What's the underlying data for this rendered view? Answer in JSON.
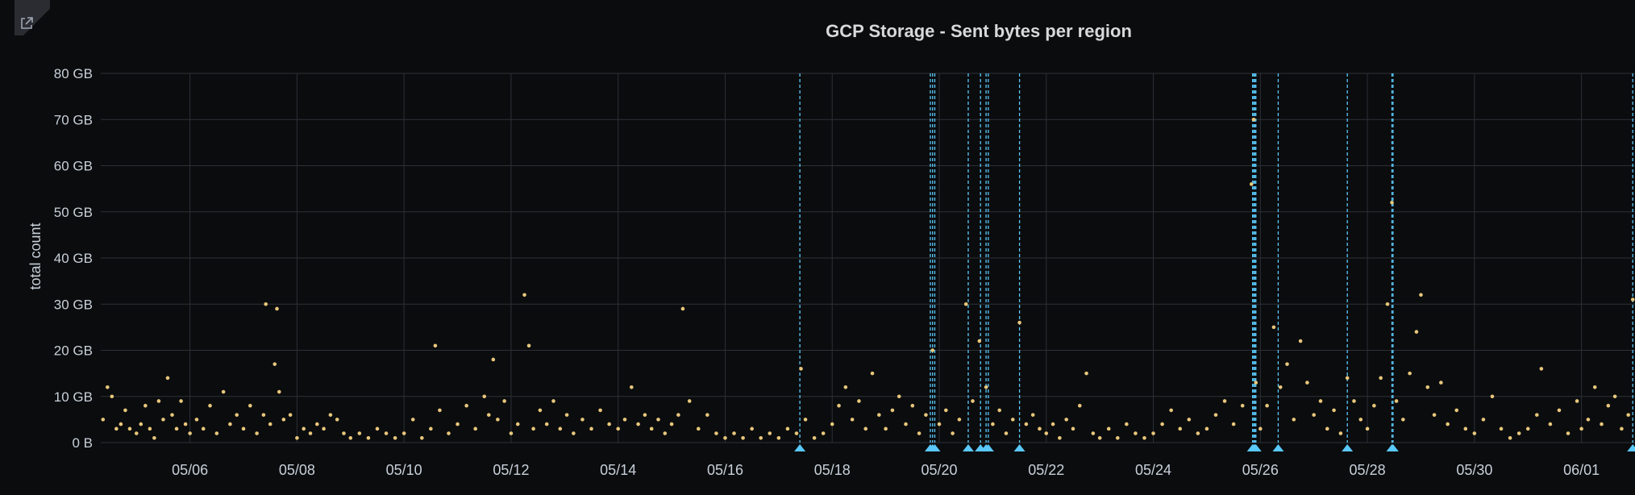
{
  "panel": {
    "title": "GCP Storage - Sent bytes per region",
    "link_icon": "external-link-icon"
  },
  "colors": {
    "background": "#0b0c0e",
    "grid": "#2c3036",
    "points": "#e8c77b",
    "annotations": "#5ac8fa",
    "text": "#c7d0d9"
  },
  "chart_data": {
    "type": "scatter",
    "title": "GCP Storage - Sent bytes per region",
    "ylabel": "total count",
    "xlabel": "",
    "x_range": [
      "05/04 08:00",
      "06/02 00:00"
    ],
    "ylim": [
      0,
      80
    ],
    "y_unit": "GB",
    "y_ticks": [
      "0 B",
      "10 GB",
      "20 GB",
      "30 GB",
      "40 GB",
      "50 GB",
      "60 GB",
      "70 GB",
      "80 GB"
    ],
    "x_ticks": [
      "05/06",
      "05/08",
      "05/10",
      "05/12",
      "05/14",
      "05/16",
      "05/18",
      "05/20",
      "05/22",
      "05/24",
      "05/26",
      "05/28",
      "05/30",
      "06/01"
    ],
    "grid": true,
    "annotation_times": [
      "05/17 09:30",
      "05/19 20:00",
      "05/19 21:00",
      "05/19 22:00",
      "05/20 13:00",
      "05/20 18:30",
      "05/20 21:00",
      "05/20 22:00",
      "05/21 12:00",
      "05/25 20:30",
      "05/25 21:00",
      "05/25 21:30",
      "05/25 22:00",
      "05/26 08:00",
      "05/27 15:00",
      "05/28 11:00",
      "05/28 11:30",
      "06/01 23:00"
    ],
    "series": [
      {
        "points": [
          [
            "05/04 09",
            5
          ],
          [
            "05/04 11",
            12
          ],
          [
            "05/04 13",
            10
          ],
          [
            "05/04 15",
            3
          ],
          [
            "05/04 17",
            4
          ],
          [
            "05/04 19",
            7
          ],
          [
            "05/04 21",
            3
          ],
          [
            "05/05 00",
            2
          ],
          [
            "05/05 02",
            4
          ],
          [
            "05/05 04",
            8
          ],
          [
            "05/05 06",
            3
          ],
          [
            "05/05 08",
            1
          ],
          [
            "05/05 10",
            9
          ],
          [
            "05/05 12",
            5
          ],
          [
            "05/05 14",
            14
          ],
          [
            "05/05 16",
            6
          ],
          [
            "05/05 18",
            3
          ],
          [
            "05/05 20",
            9
          ],
          [
            "05/05 22",
            4
          ],
          [
            "05/06 00",
            2
          ],
          [
            "05/06 03",
            5
          ],
          [
            "05/06 06",
            3
          ],
          [
            "05/06 09",
            8
          ],
          [
            "05/06 12",
            2
          ],
          [
            "05/06 15",
            11
          ],
          [
            "05/06 18",
            4
          ],
          [
            "05/06 21",
            6
          ],
          [
            "05/07 00",
            3
          ],
          [
            "05/07 03",
            8
          ],
          [
            "05/07 06",
            2
          ],
          [
            "05/07 09",
            6
          ],
          [
            "05/07 10",
            30
          ],
          [
            "05/07 12",
            4
          ],
          [
            "05/07 14",
            17
          ],
          [
            "05/07 15",
            29
          ],
          [
            "05/07 16",
            11
          ],
          [
            "05/07 18",
            5
          ],
          [
            "05/07 21",
            6
          ],
          [
            "05/08 00",
            1
          ],
          [
            "05/08 03",
            3
          ],
          [
            "05/08 06",
            2
          ],
          [
            "05/08 09",
            4
          ],
          [
            "05/08 12",
            3
          ],
          [
            "05/08 15",
            6
          ],
          [
            "05/08 18",
            5
          ],
          [
            "05/08 21",
            2
          ],
          [
            "05/09 00",
            1
          ],
          [
            "05/09 04",
            2
          ],
          [
            "05/09 08",
            1
          ],
          [
            "05/09 12",
            3
          ],
          [
            "05/09 16",
            2
          ],
          [
            "05/09 20",
            1
          ],
          [
            "05/10 00",
            2
          ],
          [
            "05/10 04",
            5
          ],
          [
            "05/10 08",
            1
          ],
          [
            "05/10 12",
            3
          ],
          [
            "05/10 14",
            21
          ],
          [
            "05/10 16",
            7
          ],
          [
            "05/10 20",
            2
          ],
          [
            "05/11 00",
            4
          ],
          [
            "05/11 04",
            8
          ],
          [
            "05/11 08",
            3
          ],
          [
            "05/11 12",
            10
          ],
          [
            "05/11 14",
            6
          ],
          [
            "05/11 16",
            18
          ],
          [
            "05/11 18",
            5
          ],
          [
            "05/11 21",
            9
          ],
          [
            "05/12 00",
            2
          ],
          [
            "05/12 03",
            4
          ],
          [
            "05/12 06",
            32
          ],
          [
            "05/12 08",
            21
          ],
          [
            "05/12 10",
            3
          ],
          [
            "05/12 13",
            7
          ],
          [
            "05/12 16",
            4
          ],
          [
            "05/12 19",
            9
          ],
          [
            "05/12 22",
            3
          ],
          [
            "05/13 01",
            6
          ],
          [
            "05/13 04",
            2
          ],
          [
            "05/13 08",
            5
          ],
          [
            "05/13 12",
            3
          ],
          [
            "05/13 16",
            7
          ],
          [
            "05/13 20",
            4
          ],
          [
            "05/14 00",
            3
          ],
          [
            "05/14 03",
            5
          ],
          [
            "05/14 06",
            12
          ],
          [
            "05/14 09",
            4
          ],
          [
            "05/14 12",
            6
          ],
          [
            "05/14 15",
            3
          ],
          [
            "05/14 18",
            5
          ],
          [
            "05/14 21",
            2
          ],
          [
            "05/15 00",
            4
          ],
          [
            "05/15 03",
            6
          ],
          [
            "05/15 05",
            29
          ],
          [
            "05/15 08",
            9
          ],
          [
            "05/15 12",
            3
          ],
          [
            "05/15 16",
            6
          ],
          [
            "05/15 20",
            2
          ],
          [
            "05/16 00",
            1
          ],
          [
            "05/16 04",
            2
          ],
          [
            "05/16 08",
            1
          ],
          [
            "05/16 12",
            3
          ],
          [
            "05/16 16",
            1
          ],
          [
            "05/16 20",
            2
          ],
          [
            "05/17 00",
            1
          ],
          [
            "05/17 04",
            3
          ],
          [
            "05/17 08",
            2
          ],
          [
            "05/17 10",
            16
          ],
          [
            "05/17 12",
            5
          ],
          [
            "05/17 16",
            1
          ],
          [
            "05/17 20",
            2
          ],
          [
            "05/18 00",
            4
          ],
          [
            "05/18 03",
            8
          ],
          [
            "05/18 06",
            12
          ],
          [
            "05/18 09",
            5
          ],
          [
            "05/18 12",
            9
          ],
          [
            "05/18 15",
            3
          ],
          [
            "05/18 18",
            15
          ],
          [
            "05/18 21",
            6
          ],
          [
            "05/19 00",
            3
          ],
          [
            "05/19 03",
            7
          ],
          [
            "05/19 06",
            10
          ],
          [
            "05/19 09",
            4
          ],
          [
            "05/19 12",
            8
          ],
          [
            "05/19 15",
            2
          ],
          [
            "05/19 18",
            6
          ],
          [
            "05/19 21",
            20
          ],
          [
            "05/20 00",
            4
          ],
          [
            "05/20 03",
            7
          ],
          [
            "05/20 06",
            2
          ],
          [
            "05/20 09",
            5
          ],
          [
            "05/20 12",
            30
          ],
          [
            "05/20 15",
            9
          ],
          [
            "05/20 18",
            22
          ],
          [
            "05/20 21",
            12
          ],
          [
            "05/21 00",
            4
          ],
          [
            "05/21 03",
            7
          ],
          [
            "05/21 06",
            2
          ],
          [
            "05/21 09",
            5
          ],
          [
            "05/21 12",
            26
          ],
          [
            "05/21 15",
            4
          ],
          [
            "05/21 18",
            6
          ],
          [
            "05/21 21",
            3
          ],
          [
            "05/22 00",
            2
          ],
          [
            "05/22 03",
            4
          ],
          [
            "05/22 06",
            1
          ],
          [
            "05/22 09",
            5
          ],
          [
            "05/22 12",
            3
          ],
          [
            "05/22 15",
            8
          ],
          [
            "05/22 18",
            15
          ],
          [
            "05/22 21",
            2
          ],
          [
            "05/23 00",
            1
          ],
          [
            "05/23 04",
            3
          ],
          [
            "05/23 08",
            1
          ],
          [
            "05/23 12",
            4
          ],
          [
            "05/23 16",
            2
          ],
          [
            "05/23 20",
            1
          ],
          [
            "05/24 00",
            2
          ],
          [
            "05/24 04",
            4
          ],
          [
            "05/24 08",
            7
          ],
          [
            "05/24 12",
            3
          ],
          [
            "05/24 16",
            5
          ],
          [
            "05/24 20",
            2
          ],
          [
            "05/25 00",
            3
          ],
          [
            "05/25 04",
            6
          ],
          [
            "05/25 08",
            9
          ],
          [
            "05/25 12",
            4
          ],
          [
            "05/25 16",
            8
          ],
          [
            "05/25 20",
            56
          ],
          [
            "05/25 21",
            70
          ],
          [
            "05/25 22",
            13
          ],
          [
            "05/26 00",
            3
          ],
          [
            "05/26 03",
            8
          ],
          [
            "05/26 06",
            25
          ],
          [
            "05/26 09",
            12
          ],
          [
            "05/26 12",
            17
          ],
          [
            "05/26 15",
            5
          ],
          [
            "05/26 18",
            22
          ],
          [
            "05/26 21",
            13
          ],
          [
            "05/27 00",
            6
          ],
          [
            "05/27 03",
            9
          ],
          [
            "05/27 06",
            3
          ],
          [
            "05/27 09",
            7
          ],
          [
            "05/27 12",
            2
          ],
          [
            "05/27 15",
            14
          ],
          [
            "05/27 18",
            9
          ],
          [
            "05/27 21",
            5
          ],
          [
            "05/28 00",
            3
          ],
          [
            "05/28 03",
            8
          ],
          [
            "05/28 06",
            14
          ],
          [
            "05/28 09",
            30
          ],
          [
            "05/28 11",
            52
          ],
          [
            "05/28 13",
            9
          ],
          [
            "05/28 16",
            5
          ],
          [
            "05/28 19",
            15
          ],
          [
            "05/28 22",
            24
          ],
          [
            "05/29 00",
            32
          ],
          [
            "05/29 03",
            12
          ],
          [
            "05/29 06",
            6
          ],
          [
            "05/29 09",
            13
          ],
          [
            "05/29 12",
            4
          ],
          [
            "05/29 16",
            7
          ],
          [
            "05/29 20",
            3
          ],
          [
            "05/30 00",
            2
          ],
          [
            "05/30 04",
            5
          ],
          [
            "05/30 08",
            10
          ],
          [
            "05/30 12",
            3
          ],
          [
            "05/30 16",
            1
          ],
          [
            "05/30 20",
            2
          ],
          [
            "05/31 00",
            3
          ],
          [
            "05/31 04",
            6
          ],
          [
            "05/31 06",
            16
          ],
          [
            "05/31 10",
            4
          ],
          [
            "05/31 14",
            7
          ],
          [
            "05/31 18",
            2
          ],
          [
            "05/31 22",
            9
          ],
          [
            "06/01 00",
            3
          ],
          [
            "06/01 03",
            5
          ],
          [
            "06/01 06",
            12
          ],
          [
            "06/01 09",
            4
          ],
          [
            "06/01 12",
            8
          ],
          [
            "06/01 15",
            10
          ],
          [
            "06/01 18",
            3
          ],
          [
            "06/01 21",
            6
          ],
          [
            "06/01 23",
            31
          ]
        ]
      }
    ]
  }
}
